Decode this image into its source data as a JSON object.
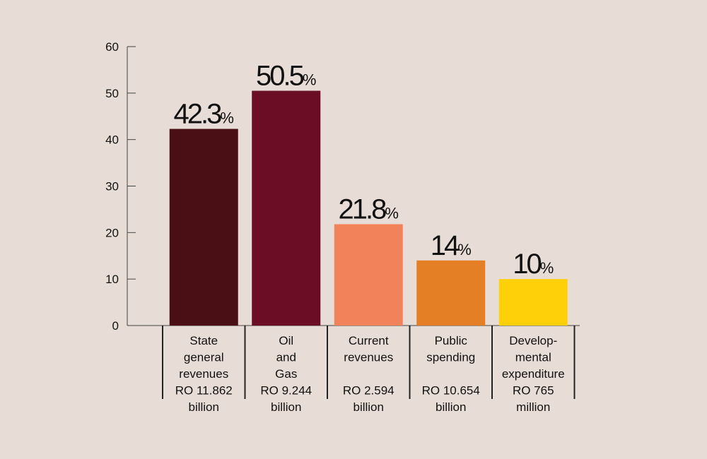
{
  "chart_data": {
    "type": "bar",
    "title": "",
    "xlabel": "",
    "ylabel": "",
    "ylim": [
      0,
      60
    ],
    "yticks": [
      0,
      10,
      20,
      30,
      40,
      50,
      60
    ],
    "grid": false,
    "legend": "none",
    "categories": [
      [
        "State",
        "general",
        "revenues",
        "RO 11.862",
        "billion"
      ],
      [
        "Oil",
        "and",
        "Gas",
        "RO 9.244",
        "billion"
      ],
      [
        "Current",
        "revenues",
        "",
        "RO 2.594",
        "billion"
      ],
      [
        "Public",
        "spending",
        "",
        "RO 10.654",
        "billion"
      ],
      [
        "Develop-",
        "mental",
        "expenditure",
        "RO 765",
        "million"
      ]
    ],
    "values": [
      42.3,
      50.5,
      21.8,
      14,
      10
    ],
    "value_labels": [
      "42.3",
      "50.5",
      "21.8",
      "14",
      "10"
    ],
    "value_suffix": "%",
    "colors": [
      "#4a0f14",
      "#6b0d24",
      "#f2825a",
      "#e57f26",
      "#fdd00a"
    ]
  }
}
